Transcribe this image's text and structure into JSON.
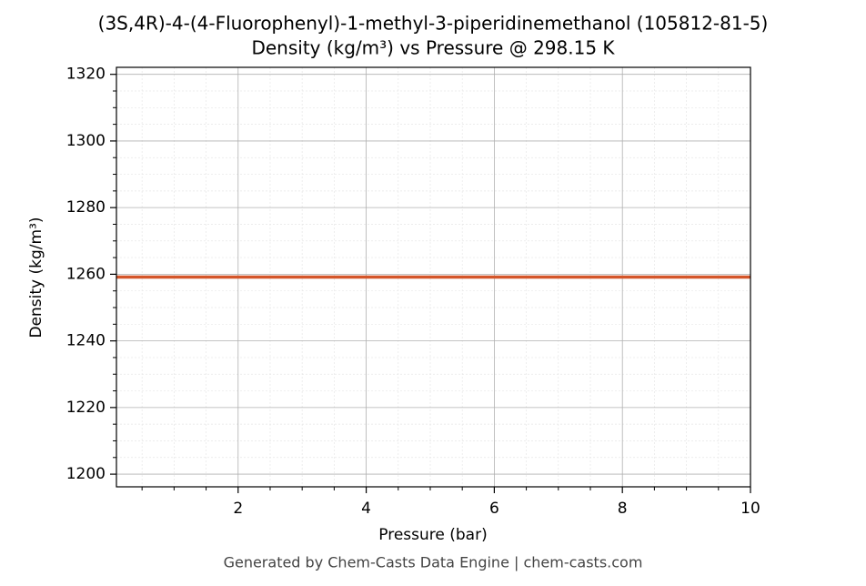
{
  "chart_data": {
    "type": "line",
    "title": "(3S,4R)-4-(4-Fluorophenyl)-1-methyl-3-piperidinemethanol (105812-81-5)",
    "subtitle": "Density (kg/m³) vs Pressure @ 298.15 K",
    "x_label": "Pressure (bar)",
    "y_label": "Density (kg/m³)",
    "footer": "Generated by Chem-Casts Data Engine | chem-casts.com",
    "x": [
      0.1,
      10
    ],
    "series": [
      {
        "name": "Density",
        "color": "#d4562a",
        "values": [
          1259.15,
          1259.15
        ]
      }
    ],
    "xlim": [
      0.1,
      10
    ],
    "xticks": [
      2,
      4,
      6,
      8,
      10
    ],
    "ylim": [
      1196.2,
      1322.1
    ],
    "yticks": [
      1200,
      1220,
      1240,
      1260,
      1280,
      1300,
      1320
    ],
    "grid": true
  }
}
